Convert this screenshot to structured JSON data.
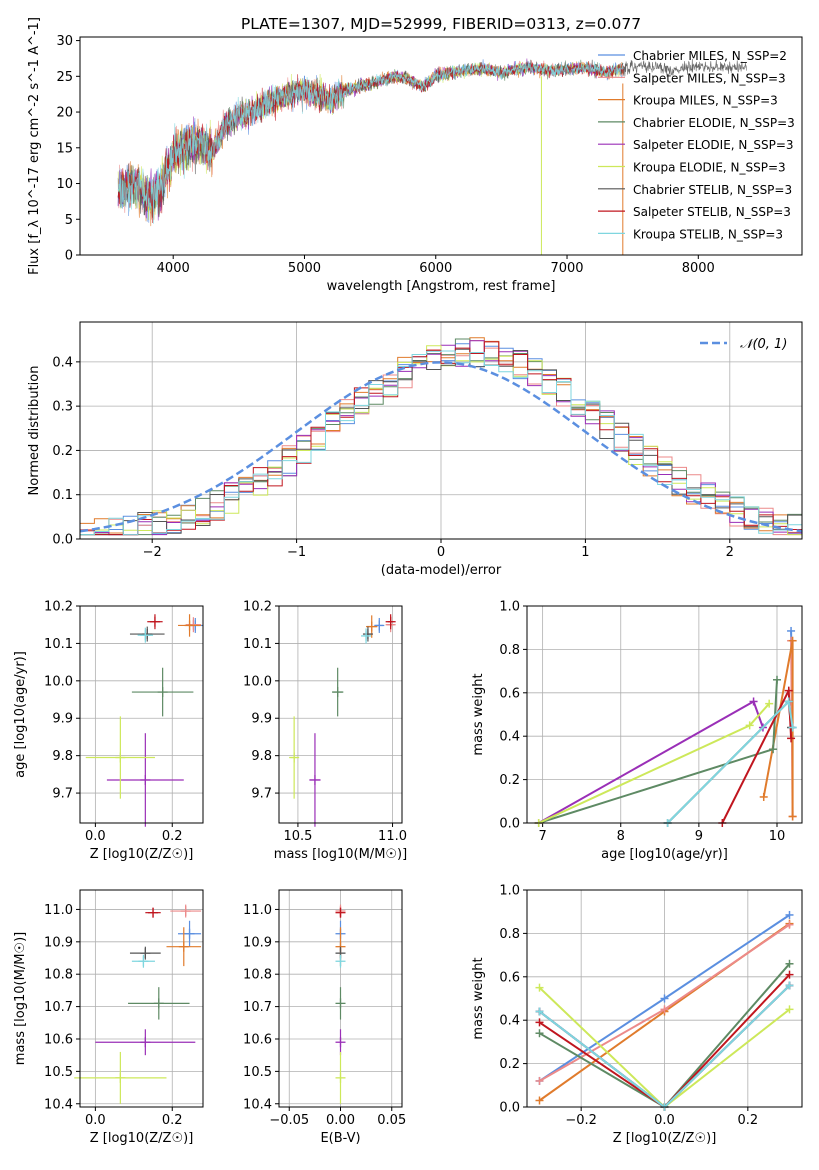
{
  "colors": {
    "chabrier_miles": "#5b8fe0",
    "salpeter_miles": "#ec8a8a",
    "kroupa_miles": "#e07b2c",
    "chabrier_elodie": "#5e8a64",
    "salpeter_elodie": "#9a2fb7",
    "kroupa_elodie": "#cde85a",
    "chabrier_stelib": "#555555",
    "salpeter_stelib": "#c0161f",
    "kroupa_stelib": "#7fd6df",
    "norm_curve": "#5b8fe0",
    "grid": "#b0b0b0"
  },
  "chart_data": [
    {
      "id": "spectrum",
      "type": "line",
      "title": "PLATE=1307, MJD=52999, FIBERID=0313, z=0.077",
      "xlabel": "wavelength [Angstrom, rest frame]",
      "ylabel": "Flux [f_λ 10^-17 erg cm^-2 s^-1 A^-1]",
      "xlim": [
        3290,
        8790
      ],
      "ylim": [
        0,
        30.5
      ],
      "xticks": [
        "4000",
        "5000",
        "6000",
        "7000",
        "8000"
      ],
      "yticks": [
        "0",
        "5",
        "10",
        "15",
        "20",
        "25",
        "30"
      ],
      "grid": false,
      "legend_position": "right",
      "continuum": [
        [
          3580,
          9
        ],
        [
          3700,
          10
        ],
        [
          3800,
          8
        ],
        [
          3900,
          9
        ],
        [
          4000,
          14
        ],
        [
          4100,
          15
        ],
        [
          4200,
          16
        ],
        [
          4300,
          14.5
        ],
        [
          4400,
          18
        ],
        [
          4500,
          19.5
        ],
        [
          4600,
          20
        ],
        [
          4700,
          21
        ],
        [
          4800,
          22
        ],
        [
          4900,
          22.5
        ],
        [
          5000,
          23
        ],
        [
          5100,
          22.5
        ],
        [
          5200,
          21.5
        ],
        [
          5300,
          23
        ],
        [
          5400,
          23.5
        ],
        [
          5500,
          24
        ],
        [
          5600,
          24.5
        ],
        [
          5700,
          25
        ],
        [
          5800,
          24.5
        ],
        [
          5900,
          23.5
        ],
        [
          6000,
          25
        ],
        [
          6100,
          25.5
        ],
        [
          6200,
          25.8
        ],
        [
          6300,
          26
        ],
        [
          6400,
          26
        ],
        [
          6500,
          25.5
        ],
        [
          6600,
          26
        ],
        [
          6700,
          26.2
        ],
        [
          6800,
          26
        ],
        [
          6900,
          25.8
        ],
        [
          7000,
          26
        ],
        [
          7100,
          26.2
        ],
        [
          7200,
          26
        ],
        [
          7300,
          25.5
        ],
        [
          7400,
          26
        ],
        [
          7500,
          26.3
        ],
        [
          7600,
          26.5
        ],
        [
          7700,
          26.3
        ],
        [
          7800,
          25.8
        ],
        [
          7900,
          26.2
        ],
        [
          8000,
          26.5
        ],
        [
          8100,
          26.4
        ],
        [
          8200,
          26.2
        ],
        [
          8300,
          26.3
        ],
        [
          8370,
          26.2
        ]
      ],
      "models_end_wavelength": 7430,
      "series": [
        {
          "name": "Chabrier MILES, N_SSP=2",
          "color_key": "chabrier_miles"
        },
        {
          "name": "Salpeter MILES, N_SSP=3",
          "color_key": "salpeter_miles"
        },
        {
          "name": "Kroupa MILES, N_SSP=3",
          "color_key": "kroupa_miles"
        },
        {
          "name": "Chabrier ELODIE, N_SSP=3",
          "color_key": "chabrier_elodie"
        },
        {
          "name": "Salpeter ELODIE, N_SSP=3",
          "color_key": "salpeter_elodie"
        },
        {
          "name": "Kroupa ELODIE, N_SSP=3",
          "color_key": "kroupa_elodie"
        },
        {
          "name": "Chabrier STELIB, N_SSP=3",
          "color_key": "chabrier_stelib"
        },
        {
          "name": "Salpeter STELIB, N_SSP=3",
          "color_key": "salpeter_stelib"
        },
        {
          "name": "Kroupa STELIB, N_SSP=3",
          "color_key": "kroupa_stelib"
        }
      ]
    },
    {
      "id": "residuals",
      "type": "line",
      "title": "",
      "xlabel": "(data-model)/error",
      "ylabel": "Normed distribution",
      "xlim": [
        -2.5,
        2.5
      ],
      "ylim": [
        0,
        0.49
      ],
      "xticks": [
        "−2",
        "−1",
        "0",
        "1",
        "2"
      ],
      "yticks": [
        "0.0",
        "0.1",
        "0.2",
        "0.3",
        "0.4"
      ],
      "grid": true,
      "legend_position": "top-right",
      "curve_label": "𝒩(0, 1)",
      "bin_width": 0.1
    },
    {
      "id": "age_vs_Z",
      "type": "scatter",
      "xlabel": "Z [log10(Z/Z☉)]",
      "ylabel": "age [log10(age/yr)]",
      "xlim": [
        -0.04,
        0.28
      ],
      "ylim": [
        9.62,
        10.2
      ],
      "xticks": [
        "0.0",
        "0.2"
      ],
      "yticks": [
        "9.7",
        "9.8",
        "9.9",
        "10.0",
        "10.1",
        "10.2"
      ],
      "grid": true,
      "points": [
        {
          "key": "chabrier_miles",
          "x": 0.26,
          "y": 10.148,
          "xerr": 0.02,
          "yerr": 0.02
        },
        {
          "key": "salpeter_miles",
          "x": 0.255,
          "y": 10.15,
          "xerr": 0.02,
          "yerr": 0.02
        },
        {
          "key": "kroupa_miles",
          "x": 0.245,
          "y": 10.148,
          "xerr": 0.03,
          "yerr": 0.03
        },
        {
          "key": "chabrier_elodie",
          "x": 0.175,
          "y": 9.97,
          "xerr": 0.08,
          "yerr": 0.065
        },
        {
          "key": "salpeter_elodie",
          "x": 0.13,
          "y": 9.735,
          "xerr": 0.1,
          "yerr": 0.125
        },
        {
          "key": "kroupa_elodie",
          "x": 0.065,
          "y": 9.795,
          "xerr": 0.09,
          "yerr": 0.11
        },
        {
          "key": "chabrier_stelib",
          "x": 0.135,
          "y": 10.125,
          "xerr": 0.045,
          "yerr": 0.02
        },
        {
          "key": "salpeter_stelib",
          "x": 0.155,
          "y": 10.158,
          "xerr": 0.02,
          "yerr": 0.02
        },
        {
          "key": "kroupa_stelib",
          "x": 0.13,
          "y": 10.122,
          "xerr": 0.02,
          "yerr": 0.02
        }
      ]
    },
    {
      "id": "age_vs_mass",
      "type": "scatter",
      "xlabel": "mass [log10(M/M☉)]",
      "ylabel": "",
      "xlim": [
        10.4,
        11.05
      ],
      "ylim": [
        9.62,
        10.2
      ],
      "xticks": [
        "10.5",
        "11.0"
      ],
      "yticks": [
        "9.7",
        "9.8",
        "9.9",
        "10.0",
        "10.1",
        "10.2"
      ],
      "grid": true,
      "points": [
        {
          "key": "chabrier_miles",
          "x": 10.93,
          "y": 10.148,
          "xerr": 0.02,
          "yerr": 0.02
        },
        {
          "key": "salpeter_miles",
          "x": 10.99,
          "y": 10.15,
          "xerr": 0.02,
          "yerr": 0.02
        },
        {
          "key": "kroupa_miles",
          "x": 10.89,
          "y": 10.145,
          "xerr": 0.03,
          "yerr": 0.03
        },
        {
          "key": "chabrier_elodie",
          "x": 10.71,
          "y": 9.97,
          "xerr": 0.03,
          "yerr": 0.065
        },
        {
          "key": "salpeter_elodie",
          "x": 10.59,
          "y": 9.735,
          "xerr": 0.03,
          "yerr": 0.125
        },
        {
          "key": "kroupa_elodie",
          "x": 10.48,
          "y": 9.795,
          "xerr": 0.02,
          "yerr": 0.11
        },
        {
          "key": "chabrier_stelib",
          "x": 10.87,
          "y": 10.125,
          "xerr": 0.015,
          "yerr": 0.02
        },
        {
          "key": "salpeter_stelib",
          "x": 10.99,
          "y": 10.158,
          "xerr": 0.015,
          "yerr": 0.02
        },
        {
          "key": "kroupa_stelib",
          "x": 10.86,
          "y": 10.12,
          "xerr": 0.015,
          "yerr": 0.02
        }
      ]
    },
    {
      "id": "weight_vs_age",
      "type": "line",
      "xlabel": "age [log10(age/yr)]",
      "ylabel": "mass weight",
      "xlim": [
        6.8,
        10.32
      ],
      "ylim": [
        0,
        1
      ],
      "xticks": [
        "7",
        "8",
        "9",
        "10"
      ],
      "yticks": [
        "0.0",
        "0.2",
        "0.4",
        "0.6",
        "0.8",
        "1.0"
      ],
      "grid": true,
      "series": [
        {
          "key": "chabrier_miles",
          "x": [
            10.18,
            10.2,
            10.15
          ],
          "y": [
            0.885,
            0.44,
            0.56
          ]
        },
        {
          "key": "salpeter_miles",
          "x": [
            10.18,
            10.2
          ],
          "y": [
            0.84,
            0.03
          ]
        },
        {
          "key": "kroupa_miles",
          "x": [
            9.83,
            10.2,
            10.2
          ],
          "y": [
            0.12,
            0.84,
            0.03
          ]
        },
        {
          "key": "chabrier_elodie",
          "x": [
            6.95,
            9.95,
            10.0
          ],
          "y": [
            0.0,
            0.34,
            0.66
          ]
        },
        {
          "key": "salpeter_elodie",
          "x": [
            6.95,
            9.7,
            9.82
          ],
          "y": [
            0.0,
            0.56,
            0.44
          ]
        },
        {
          "key": "kroupa_elodie",
          "x": [
            6.95,
            9.65,
            9.9
          ],
          "y": [
            0.0,
            0.45,
            0.55
          ]
        },
        {
          "key": "chabrier_stelib",
          "x": [
            8.6,
            10.15,
            10.18
          ],
          "y": [
            0.0,
            0.56,
            0.44
          ]
        },
        {
          "key": "salpeter_stelib",
          "x": [
            9.3,
            10.15,
            10.18
          ],
          "y": [
            0.0,
            0.61,
            0.39
          ]
        },
        {
          "key": "kroupa_stelib",
          "x": [
            8.6,
            10.15,
            10.2
          ],
          "y": [
            0.0,
            0.56,
            0.44
          ]
        }
      ]
    },
    {
      "id": "mass_vs_Z",
      "type": "scatter",
      "xlabel": "Z [log10(Z/Z☉)]",
      "ylabel": "mass [log10(M/M☉)]",
      "xlim": [
        -0.04,
        0.28
      ],
      "ylim": [
        10.39,
        11.06
      ],
      "xticks": [
        "0.0",
        "0.2"
      ],
      "yticks": [
        "10.4",
        "10.5",
        "10.6",
        "10.7",
        "10.8",
        "10.9",
        "11.0"
      ],
      "grid": true,
      "points": [
        {
          "key": "chabrier_miles",
          "x": 0.245,
          "y": 10.925,
          "xerr": 0.03,
          "yerr": 0.04
        },
        {
          "key": "salpeter_miles",
          "x": 0.235,
          "y": 10.995,
          "xerr": 0.04,
          "yerr": 0.02
        },
        {
          "key": "kroupa_miles",
          "x": 0.23,
          "y": 10.885,
          "xerr": 0.045,
          "yerr": 0.06
        },
        {
          "key": "chabrier_elodie",
          "x": 0.165,
          "y": 10.71,
          "xerr": 0.08,
          "yerr": 0.05
        },
        {
          "key": "salpeter_elodie",
          "x": 0.13,
          "y": 10.59,
          "xerr": 0.13,
          "yerr": 0.04
        },
        {
          "key": "kroupa_elodie",
          "x": 0.065,
          "y": 10.48,
          "xerr": 0.12,
          "yerr": 0.08
        },
        {
          "key": "chabrier_stelib",
          "x": 0.13,
          "y": 10.865,
          "xerr": 0.04,
          "yerr": 0.02
        },
        {
          "key": "salpeter_stelib",
          "x": 0.15,
          "y": 10.99,
          "xerr": 0.02,
          "yerr": 0.015
        },
        {
          "key": "kroupa_stelib",
          "x": 0.125,
          "y": 10.84,
          "xerr": 0.03,
          "yerr": 0.02
        }
      ]
    },
    {
      "id": "mass_vs_ebv",
      "type": "scatter",
      "xlabel": "E(B-V)",
      "ylabel": "",
      "xlim": [
        -0.06,
        0.06
      ],
      "ylim": [
        10.39,
        11.06
      ],
      "xticks": [
        "−0.05",
        "0.00",
        "0.05"
      ],
      "yticks": [
        "10.4",
        "10.5",
        "10.6",
        "10.7",
        "10.8",
        "10.9",
        "11.0"
      ],
      "grid": true,
      "points": [
        {
          "key": "chabrier_miles",
          "x": 0.0,
          "y": 10.925,
          "xerr": 0,
          "yerr": 0.04
        },
        {
          "key": "salpeter_miles",
          "x": 0.0,
          "y": 10.995,
          "xerr": 0,
          "yerr": 0.02
        },
        {
          "key": "kroupa_miles",
          "x": 0.0,
          "y": 10.885,
          "xerr": 0,
          "yerr": 0.06
        },
        {
          "key": "chabrier_elodie",
          "x": 0.0,
          "y": 10.71,
          "xerr": 0,
          "yerr": 0.05
        },
        {
          "key": "salpeter_elodie",
          "x": 0.0,
          "y": 10.59,
          "xerr": 0,
          "yerr": 0.04
        },
        {
          "key": "kroupa_elodie",
          "x": 0.0,
          "y": 10.48,
          "xerr": 0,
          "yerr": 0.08
        },
        {
          "key": "chabrier_stelib",
          "x": 0.0,
          "y": 10.865,
          "xerr": 0,
          "yerr": 0.02
        },
        {
          "key": "salpeter_stelib",
          "x": 0.0,
          "y": 10.99,
          "xerr": 0,
          "yerr": 0.015
        },
        {
          "key": "kroupa_stelib",
          "x": 0.0,
          "y": 10.84,
          "xerr": 0,
          "yerr": 0.02
        }
      ]
    },
    {
      "id": "weight_vs_Z",
      "type": "line",
      "xlabel": "Z [log10(Z/Z☉)]",
      "ylabel": "mass weight",
      "xlim": [
        -0.33,
        0.33
      ],
      "ylim": [
        0,
        1
      ],
      "xticks": [
        "−0.2",
        "0.0",
        "0.2"
      ],
      "yticks": [
        "0.0",
        "0.2",
        "0.4",
        "0.6",
        "0.8",
        "1.0"
      ],
      "grid": true,
      "series": [
        {
          "key": "chabrier_miles",
          "x": [
            -0.3,
            0.0,
            0.3
          ],
          "y": [
            0.12,
            0.5,
            0.885
          ]
        },
        {
          "key": "kroupa_miles",
          "x": [
            -0.3,
            0.0,
            0.3
          ],
          "y": [
            0.03,
            0.44,
            0.845
          ]
        },
        {
          "key": "salpeter_miles",
          "x": [
            -0.3,
            0.0,
            0.3
          ],
          "y": [
            0.12,
            0.45,
            0.84
          ]
        },
        {
          "key": "chabrier_elodie",
          "x": [
            -0.3,
            0.0,
            0.3
          ],
          "y": [
            0.34,
            0.0,
            0.66
          ]
        },
        {
          "key": "salpeter_elodie",
          "x": [
            -0.3,
            0.0,
            0.3
          ],
          "y": [
            0.44,
            0.0,
            0.56
          ]
        },
        {
          "key": "kroupa_elodie",
          "x": [
            -0.3,
            0.0,
            0.3
          ],
          "y": [
            0.55,
            0.0,
            0.45
          ]
        },
        {
          "key": "chabrier_stelib",
          "x": [
            -0.3,
            0.0,
            0.3
          ],
          "y": [
            0.44,
            0.0,
            0.56
          ]
        },
        {
          "key": "salpeter_stelib",
          "x": [
            -0.3,
            0.0,
            0.3
          ],
          "y": [
            0.39,
            0.0,
            0.61
          ]
        },
        {
          "key": "kroupa_stelib",
          "x": [
            -0.3,
            0.0,
            0.3
          ],
          "y": [
            0.44,
            0.0,
            0.56
          ]
        }
      ]
    }
  ]
}
